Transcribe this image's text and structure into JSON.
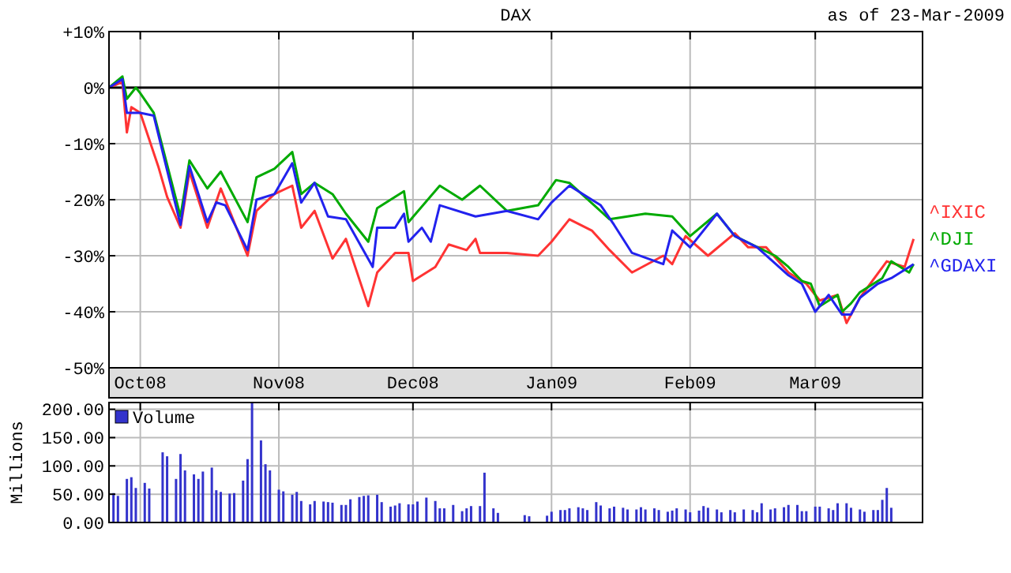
{
  "chart_data": [
    {
      "type": "line",
      "title": "DAX",
      "subtitle": "as of 23-Mar-2009",
      "xlim": [
        "2008-09-24",
        "2009-03-25"
      ],
      "xticks": [
        {
          "value": "2008-10-01",
          "label": "Oct08"
        },
        {
          "value": "2008-11-01",
          "label": "Nov08"
        },
        {
          "value": "2008-12-01",
          "label": "Dec08"
        },
        {
          "value": "2009-01-01",
          "label": "Jan09"
        },
        {
          "value": "2009-02-01",
          "label": "Feb09"
        },
        {
          "value": "2009-03-01",
          "label": "Mar09"
        }
      ],
      "ylim": [
        -50,
        10
      ],
      "yticks": [
        {
          "value": -50,
          "label": "-50%"
        },
        {
          "value": -40,
          "label": "-40%"
        },
        {
          "value": -30,
          "label": "-30%"
        },
        {
          "value": -20,
          "label": "-20%"
        },
        {
          "value": -10,
          "label": "-10%"
        },
        {
          "value": 0,
          "label": "0%"
        },
        {
          "value": 10,
          "label": "+10%"
        }
      ],
      "grid": true,
      "legend": "right",
      "ref_lines": [
        {
          "axis": "y",
          "value": 0,
          "color": "#000000"
        }
      ],
      "series": [
        {
          "name": "^IXIC",
          "color": "#ff3333",
          "x": [
            "2008-09-24",
            "2008-09-27",
            "2008-09-28",
            "2008-09-29",
            "2008-10-01",
            "2008-10-05",
            "2008-10-07",
            "2008-10-10",
            "2008-10-12",
            "2008-10-16",
            "2008-10-19",
            "2008-10-25",
            "2008-10-27",
            "2008-10-31",
            "2008-11-04",
            "2008-11-06",
            "2008-11-09",
            "2008-11-13",
            "2008-11-16",
            "2008-11-21",
            "2008-11-23",
            "2008-11-27",
            "2008-11-30",
            "2008-12-01",
            "2008-12-06",
            "2008-12-09",
            "2008-12-13",
            "2008-12-15",
            "2008-12-16",
            "2008-12-22",
            "2008-12-29",
            "2009-01-01",
            "2009-01-05",
            "2009-01-10",
            "2009-01-14",
            "2009-01-19",
            "2009-01-26",
            "2009-01-28",
            "2009-01-31",
            "2009-02-05",
            "2009-02-11",
            "2009-02-14",
            "2009-02-18",
            "2009-02-23",
            "2009-02-27",
            "2009-03-02",
            "2009-03-06",
            "2009-03-08",
            "2009-03-11",
            "2009-03-17",
            "2009-03-21",
            "2009-03-23"
          ],
          "values": [
            0,
            1,
            -8,
            -3.5,
            -4.5,
            -14,
            -19.5,
            -25,
            -15,
            -25,
            -18,
            -30,
            -22,
            -19,
            -17.5,
            -25,
            -22,
            -30.5,
            -27,
            -39,
            -33,
            -29.5,
            -29.5,
            -34.5,
            -32,
            -28,
            -29,
            -27,
            -29.5,
            -29.5,
            -30,
            -27.5,
            -23.5,
            -25.5,
            -29,
            -33,
            -30,
            -31.5,
            -26.5,
            -30,
            -26,
            -28.5,
            -28.5,
            -33,
            -35,
            -38,
            -37,
            -42,
            -37.5,
            -31,
            -32,
            -27
          ]
        },
        {
          "name": "^DJI",
          "color": "#00aa00",
          "x": [
            "2008-09-24",
            "2008-09-27",
            "2008-09-28",
            "2008-09-30",
            "2008-10-01",
            "2008-10-04",
            "2008-10-10",
            "2008-10-12",
            "2008-10-16",
            "2008-10-19",
            "2008-10-25",
            "2008-10-27",
            "2008-10-31",
            "2008-11-04",
            "2008-11-06",
            "2008-11-09",
            "2008-11-13",
            "2008-11-16",
            "2008-11-21",
            "2008-11-23",
            "2008-11-29",
            "2008-11-30",
            "2008-12-07",
            "2008-12-12",
            "2008-12-16",
            "2008-12-22",
            "2008-12-29",
            "2009-01-02",
            "2009-01-05",
            "2009-01-14",
            "2009-01-22",
            "2009-01-28",
            "2009-02-01",
            "2009-02-07",
            "2009-02-11",
            "2009-02-20",
            "2009-02-23",
            "2009-02-26",
            "2009-02-28",
            "2009-03-02",
            "2009-03-06",
            "2009-03-07",
            "2009-03-09",
            "2009-03-11",
            "2009-03-16",
            "2009-03-18",
            "2009-03-22",
            "2009-03-23"
          ],
          "values": [
            0,
            2,
            -2,
            0,
            -1,
            -4.5,
            -23,
            -13,
            -18,
            -15,
            -24,
            -16,
            -14.5,
            -11.5,
            -19,
            -17,
            -19,
            -22.5,
            -27.5,
            -21.5,
            -18.5,
            -24,
            -17.5,
            -20,
            -17.5,
            -22,
            -21,
            -16.5,
            -17,
            -23.5,
            -22.5,
            -23,
            -26.5,
            -22.5,
            -26.5,
            -30,
            -32,
            -34.5,
            -35,
            -39,
            -37,
            -40,
            -38.5,
            -36.5,
            -34,
            -31,
            -33,
            -31.5
          ]
        },
        {
          "name": "^GDAXI",
          "color": "#2222ee",
          "x": [
            "2008-09-24",
            "2008-09-27",
            "2008-09-28",
            "2008-10-01",
            "2008-10-04",
            "2008-10-10",
            "2008-10-12",
            "2008-10-16",
            "2008-10-18",
            "2008-10-20",
            "2008-10-25",
            "2008-10-27",
            "2008-10-31",
            "2008-11-04",
            "2008-11-06",
            "2008-11-09",
            "2008-11-12",
            "2008-11-16",
            "2008-11-22",
            "2008-11-23",
            "2008-11-27",
            "2008-11-29",
            "2008-11-30",
            "2008-12-03",
            "2008-12-05",
            "2008-12-07",
            "2008-12-15",
            "2008-12-22",
            "2008-12-29",
            "2009-01-01",
            "2009-01-05",
            "2009-01-12",
            "2009-01-15",
            "2009-01-19",
            "2009-01-26",
            "2009-01-28",
            "2009-02-01",
            "2009-02-07",
            "2009-02-11",
            "2009-02-16",
            "2009-02-23",
            "2009-02-26",
            "2009-03-01",
            "2009-03-04",
            "2009-03-07",
            "2009-03-09",
            "2009-03-11",
            "2009-03-15",
            "2009-03-18",
            "2009-03-23"
          ],
          "values": [
            0,
            1.5,
            -4.5,
            -4.5,
            -5,
            -24.5,
            -14,
            -24,
            -20.5,
            -21,
            -29,
            -20,
            -19,
            -13.5,
            -20.5,
            -17,
            -23,
            -23.5,
            -32,
            -25,
            -25,
            -22.5,
            -27.5,
            -25,
            -27.5,
            -21,
            -23,
            -22,
            -23.5,
            -20.5,
            -17.5,
            -21,
            -24.5,
            -29.5,
            -31.5,
            -25.5,
            -28.5,
            -22.5,
            -26.5,
            -28.5,
            -33.5,
            -35,
            -40,
            -37,
            -40.5,
            -40.5,
            -37.5,
            -35,
            -34,
            -31.5
          ]
        }
      ]
    },
    {
      "type": "bar",
      "ylabel": "Millions",
      "xlim": [
        "2008-09-24",
        "2009-03-25"
      ],
      "xticks": [
        "2008-10-01",
        "2008-11-01",
        "2008-12-01",
        "2009-01-01",
        "2009-02-01",
        "2009-03-01"
      ],
      "tick_labels": "y",
      "ylim": [
        0,
        212
      ],
      "yticks": [
        {
          "value": 0,
          "label": "0.00"
        },
        {
          "value": 50,
          "label": "50.00"
        },
        {
          "value": 100,
          "label": "100.00"
        },
        {
          "value": 150,
          "label": "150.00"
        },
        {
          "value": 200,
          "label": "200.00"
        }
      ],
      "grid": true,
      "legend": "top left",
      "series": [
        {
          "name": "Volume",
          "color": "#3333cc",
          "x": [
            "2008-09-25",
            "2008-09-26",
            "2008-09-28",
            "2008-09-29",
            "2008-09-30",
            "2008-10-02",
            "2008-10-03",
            "2008-10-06",
            "2008-10-07",
            "2008-10-09",
            "2008-10-10",
            "2008-10-11",
            "2008-10-13",
            "2008-10-14",
            "2008-10-15",
            "2008-10-17",
            "2008-10-18",
            "2008-10-19",
            "2008-10-21",
            "2008-10-22",
            "2008-10-24",
            "2008-10-25",
            "2008-10-26",
            "2008-10-28",
            "2008-10-29",
            "2008-10-30",
            "2008-11-01",
            "2008-11-02",
            "2008-11-04",
            "2008-11-05",
            "2008-11-06",
            "2008-11-08",
            "2008-11-09",
            "2008-11-11",
            "2008-11-12",
            "2008-11-13",
            "2008-11-15",
            "2008-11-16",
            "2008-11-17",
            "2008-11-19",
            "2008-11-20",
            "2008-11-21",
            "2008-11-23",
            "2008-11-24",
            "2008-11-26",
            "2008-11-27",
            "2008-11-28",
            "2008-11-30",
            "2008-12-01",
            "2008-12-02",
            "2008-12-04",
            "2008-12-06",
            "2008-12-07",
            "2008-12-08",
            "2008-12-10",
            "2008-12-12",
            "2008-12-13",
            "2008-12-14",
            "2008-12-16",
            "2008-12-17",
            "2008-12-19",
            "2008-12-20",
            "2008-12-26",
            "2008-12-27",
            "2008-12-31",
            "2009-01-01",
            "2009-01-03",
            "2009-01-04",
            "2009-01-05",
            "2009-01-07",
            "2009-01-08",
            "2009-01-09",
            "2009-01-11",
            "2009-01-12",
            "2009-01-14",
            "2009-01-15",
            "2009-01-17",
            "2009-01-18",
            "2009-01-20",
            "2009-01-21",
            "2009-01-22",
            "2009-01-24",
            "2009-01-25",
            "2009-01-27",
            "2009-01-28",
            "2009-01-29",
            "2009-01-31",
            "2009-02-01",
            "2009-02-03",
            "2009-02-04",
            "2009-02-05",
            "2009-02-07",
            "2009-02-08",
            "2009-02-10",
            "2009-02-11",
            "2009-02-13",
            "2009-02-15",
            "2009-02-16",
            "2009-02-17",
            "2009-02-19",
            "2009-02-20",
            "2009-02-22",
            "2009-02-23",
            "2009-02-25",
            "2009-02-26",
            "2009-02-27",
            "2009-03-01",
            "2009-03-02",
            "2009-03-04",
            "2009-03-05",
            "2009-03-06",
            "2009-03-08",
            "2009-03-09",
            "2009-03-11",
            "2009-03-12",
            "2009-03-14",
            "2009-03-15",
            "2009-03-16",
            "2009-03-17",
            "2009-03-18"
          ],
          "values": [
            52,
            47,
            77,
            80,
            61,
            70,
            60,
            124,
            117,
            77,
            121,
            92,
            85,
            77,
            90,
            97,
            57,
            54,
            51,
            52,
            74,
            112,
            212,
            145,
            103,
            92,
            58,
            55,
            49,
            54,
            38,
            32,
            38,
            37,
            36,
            35,
            31,
            31,
            41,
            45,
            47,
            48,
            49,
            36,
            28,
            30,
            34,
            32,
            32,
            37,
            44,
            38,
            25,
            25,
            31,
            20,
            25,
            29,
            29,
            88,
            25,
            17,
            13,
            11,
            12,
            19,
            22,
            22,
            25,
            27,
            25,
            22,
            36,
            30,
            25,
            28,
            26,
            23,
            23,
            27,
            23,
            25,
            22,
            19,
            21,
            25,
            23,
            18,
            21,
            29,
            26,
            23,
            18,
            22,
            18,
            23,
            22,
            18,
            34,
            23,
            25,
            27,
            31,
            31,
            20,
            20,
            28,
            28,
            25,
            22,
            34,
            34,
            26,
            23,
            19,
            22,
            22,
            40,
            61,
            26
          ]
        }
      ]
    }
  ]
}
